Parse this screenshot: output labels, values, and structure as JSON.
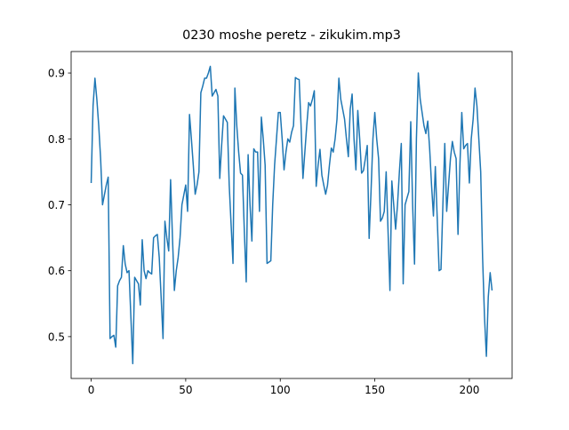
{
  "chart_data": {
    "type": "line",
    "title": "0230 moshe peretz - zikukim.mp3",
    "color": "#1f77b4",
    "grid": false,
    "xlim": [
      -10.6,
      222.6
    ],
    "xticks": [
      0,
      50,
      100,
      150,
      200
    ],
    "ylim": [
      0.4365,
      0.9325
    ],
    "yticks": [
      0.5,
      0.6,
      0.7,
      0.8,
      0.9
    ],
    "x": [
      0,
      1,
      2,
      3,
      4,
      5,
      6,
      7,
      8,
      9,
      10,
      11,
      12,
      13,
      14,
      15,
      16,
      17,
      18,
      19,
      20,
      21,
      22,
      23,
      24,
      25,
      26,
      27,
      28,
      29,
      30,
      31,
      32,
      33,
      34,
      35,
      36,
      37,
      38,
      39,
      40,
      41,
      42,
      43,
      44,
      45,
      46,
      47,
      48,
      49,
      50,
      51,
      52,
      53,
      54,
      55,
      56,
      57,
      58,
      59,
      60,
      61,
      62,
      63,
      64,
      65,
      66,
      67,
      68,
      69,
      70,
      71,
      72,
      73,
      74,
      75,
      76,
      77,
      78,
      79,
      80,
      81,
      82,
      83,
      84,
      85,
      86,
      87,
      88,
      89,
      90,
      91,
      92,
      93,
      94,
      95,
      96,
      97,
      98,
      99,
      100,
      101,
      102,
      103,
      104,
      105,
      106,
      107,
      108,
      109,
      110,
      111,
      112,
      113,
      114,
      115,
      116,
      117,
      118,
      119,
      120,
      121,
      122,
      123,
      124,
      125,
      126,
      127,
      128,
      129,
      130,
      131,
      132,
      133,
      134,
      135,
      136,
      137,
      138,
      139,
      140,
      141,
      142,
      143,
      144,
      145,
      146,
      147,
      148,
      149,
      150,
      151,
      152,
      153,
      154,
      155,
      156,
      157,
      158,
      159,
      160,
      161,
      162,
      163,
      164,
      165,
      166,
      167,
      168,
      169,
      170,
      171,
      172,
      173,
      174,
      175,
      176,
      177,
      178,
      179,
      180,
      181,
      182,
      183,
      184,
      185,
      186,
      187,
      188,
      189,
      190,
      191,
      192,
      193,
      194,
      195,
      196,
      197,
      198,
      199,
      200,
      201,
      202,
      203,
      204,
      205,
      206,
      207,
      208,
      209,
      210,
      211,
      212
    ],
    "values": [
      0.733,
      0.85,
      0.892,
      0.86,
      0.82,
      0.77,
      0.7,
      0.715,
      0.73,
      0.742,
      0.497,
      0.5,
      0.502,
      0.484,
      0.577,
      0.585,
      0.59,
      0.638,
      0.61,
      0.597,
      0.6,
      0.53,
      0.459,
      0.59,
      0.585,
      0.58,
      0.548,
      0.647,
      0.6,
      0.588,
      0.6,
      0.597,
      0.595,
      0.65,
      0.653,
      0.655,
      0.62,
      0.56,
      0.497,
      0.675,
      0.65,
      0.63,
      0.738,
      0.65,
      0.57,
      0.6,
      0.62,
      0.65,
      0.7,
      0.715,
      0.73,
      0.69,
      0.837,
      0.8,
      0.76,
      0.716,
      0.73,
      0.75,
      0.87,
      0.88,
      0.892,
      0.892,
      0.9,
      0.91,
      0.865,
      0.87,
      0.875,
      0.865,
      0.74,
      0.79,
      0.835,
      0.83,
      0.825,
      0.73,
      0.67,
      0.611,
      0.877,
      0.82,
      0.78,
      0.748,
      0.745,
      0.66,
      0.583,
      0.776,
      0.7,
      0.645,
      0.785,
      0.78,
      0.78,
      0.69,
      0.833,
      0.8,
      0.76,
      0.611,
      0.613,
      0.615,
      0.7,
      0.76,
      0.8,
      0.84,
      0.84,
      0.8,
      0.753,
      0.78,
      0.8,
      0.795,
      0.81,
      0.82,
      0.893,
      0.891,
      0.89,
      0.82,
      0.74,
      0.78,
      0.82,
      0.855,
      0.85,
      0.86,
      0.873,
      0.728,
      0.76,
      0.784,
      0.745,
      0.73,
      0.716,
      0.73,
      0.76,
      0.786,
      0.78,
      0.8,
      0.83,
      0.892,
      0.86,
      0.845,
      0.83,
      0.8,
      0.773,
      0.845,
      0.868,
      0.8,
      0.753,
      0.843,
      0.8,
      0.748,
      0.752,
      0.77,
      0.79,
      0.649,
      0.72,
      0.8,
      0.84,
      0.8,
      0.77,
      0.675,
      0.68,
      0.69,
      0.75,
      0.66,
      0.57,
      0.736,
      0.7,
      0.663,
      0.7,
      0.75,
      0.793,
      0.58,
      0.7,
      0.71,
      0.72,
      0.826,
      0.7,
      0.61,
      0.8,
      0.9,
      0.86,
      0.84,
      0.82,
      0.808,
      0.827,
      0.785,
      0.73,
      0.683,
      0.758,
      0.68,
      0.6,
      0.602,
      0.7,
      0.793,
      0.69,
      0.73,
      0.77,
      0.796,
      0.78,
      0.77,
      0.655,
      0.76,
      0.84,
      0.785,
      0.79,
      0.793,
      0.733,
      0.8,
      0.83,
      0.877,
      0.85,
      0.8,
      0.75,
      0.62,
      0.53,
      0.47,
      0.56,
      0.597,
      0.57
    ]
  }
}
